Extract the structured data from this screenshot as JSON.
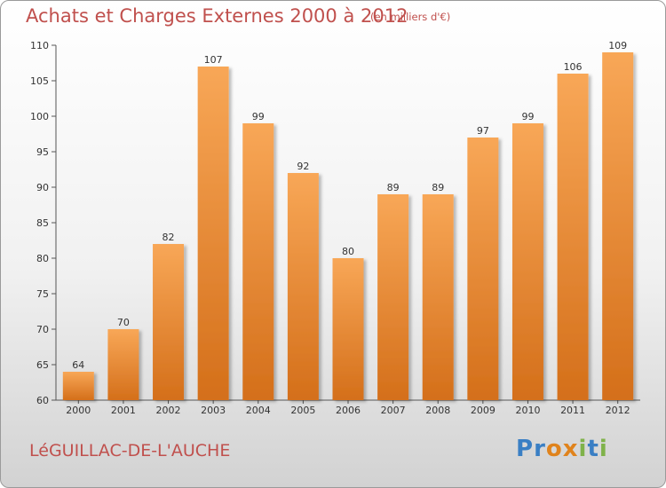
{
  "header": {
    "title": "Achats et Charges Externes 2000 à 2012",
    "unit": "(en milliers d'€)"
  },
  "footer": {
    "commune": "LéGUILLAC-DE-L'AUCHE",
    "logo_letters": [
      "P",
      "r",
      "o",
      "x",
      "i",
      "t",
      "i"
    ],
    "logo_colors": [
      "#3a7fc4",
      "#3a7fc4",
      "#e0831c",
      "#e0831c",
      "#7fb24a",
      "#3a7fc4",
      "#7fb24a"
    ]
  },
  "chart_data": {
    "type": "bar",
    "title": "Achats et Charges Externes 2000 à 2012",
    "categories": [
      "2000",
      "2001",
      "2002",
      "2003",
      "2004",
      "2005",
      "2006",
      "2007",
      "2008",
      "2009",
      "2010",
      "2011",
      "2012"
    ],
    "values": [
      64,
      70,
      82,
      107,
      99,
      92,
      80,
      89,
      89,
      97,
      99,
      106,
      109
    ],
    "ylim": [
      60,
      110
    ],
    "yticks": [
      60,
      65,
      70,
      75,
      80,
      85,
      90,
      95,
      100,
      105,
      110
    ],
    "grid": false,
    "bar_color_top": "#f8a757",
    "bar_color_bottom": "#d46f1a"
  }
}
